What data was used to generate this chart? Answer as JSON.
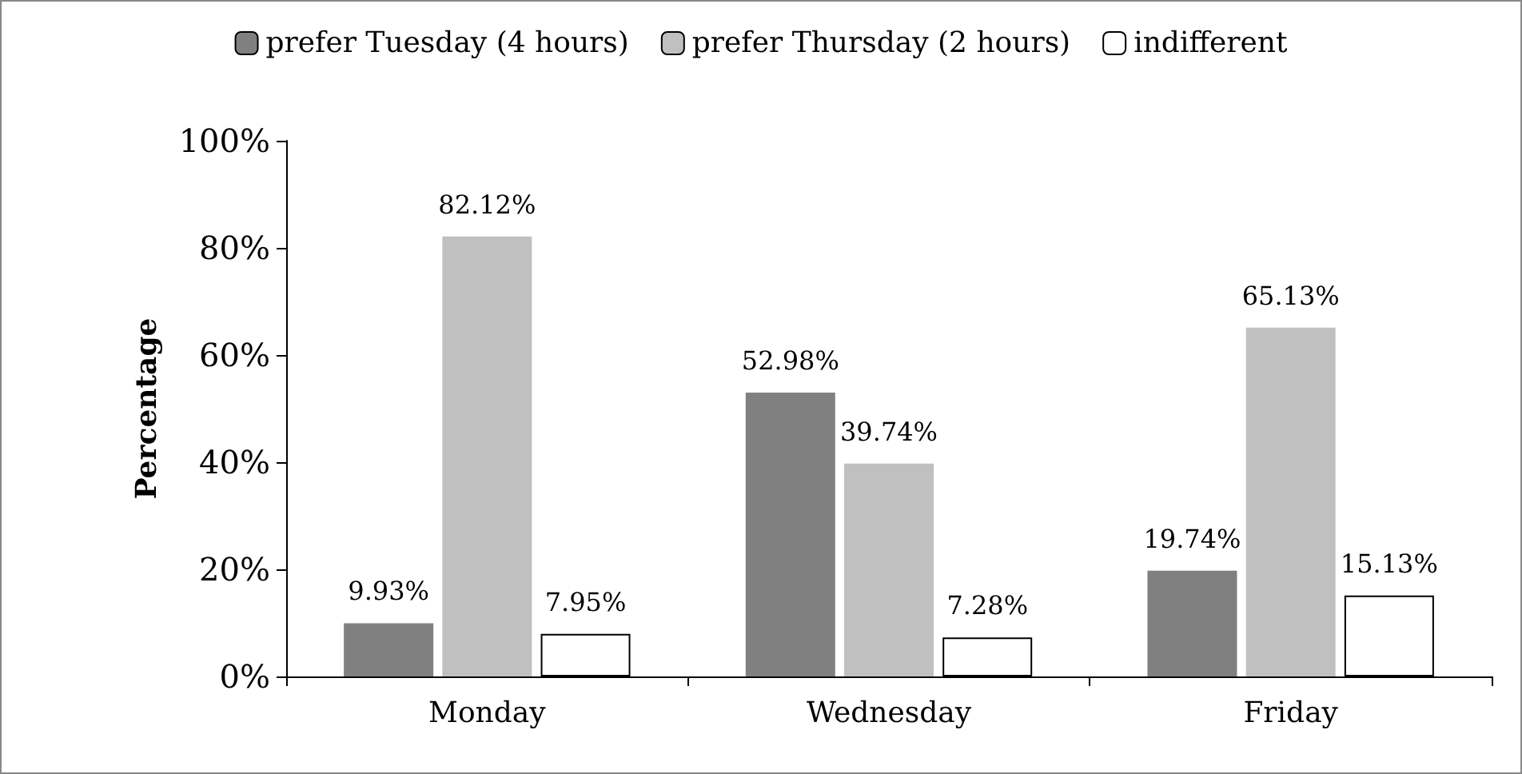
{
  "chart_data": {
    "type": "bar",
    "ylabel": "Percentage",
    "categories": [
      "Monday",
      "Wednesday",
      "Friday"
    ],
    "series": [
      {
        "name": "prefer Tuesday (4 hours)",
        "color": "#808080",
        "values": [
          9.93,
          52.98,
          19.74
        ],
        "value_labels": [
          "9.93%",
          "52.98%",
          "19.74%"
        ]
      },
      {
        "name": "prefer Thursday (2 hours)",
        "color": "#c0c0c0",
        "values": [
          82.12,
          39.74,
          65.13
        ],
        "value_labels": [
          "82.12%",
          "39.74%",
          "65.13%"
        ]
      },
      {
        "name": "indifferent",
        "color": "#ffffff",
        "values": [
          7.95,
          7.28,
          15.13
        ],
        "value_labels": [
          "7.95%",
          "7.28%",
          "15.13%"
        ]
      }
    ],
    "ylim": [
      0,
      100
    ],
    "yticks": [
      {
        "value": 0,
        "label": "0%"
      },
      {
        "value": 20,
        "label": "20%"
      },
      {
        "value": 40,
        "label": "40%"
      },
      {
        "value": 60,
        "label": "60%"
      },
      {
        "value": 80,
        "label": "80%"
      },
      {
        "value": 100,
        "label": "100%"
      }
    ],
    "legend": "top",
    "grid": false
  }
}
